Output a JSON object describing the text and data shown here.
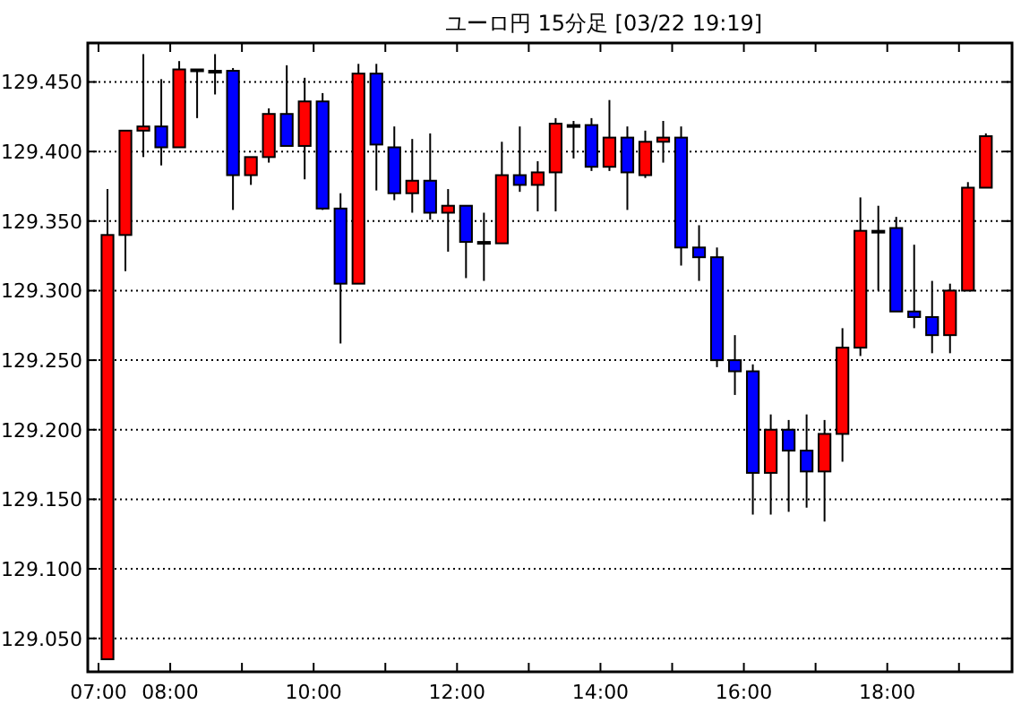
{
  "chart_data": {
    "type": "candlestick",
    "title": "ユーロ円 15分足 [03/22 19:19]",
    "x": [
      7.125,
      7.375,
      7.625,
      7.875,
      8.125,
      8.375,
      8.625,
      8.875,
      9.125,
      9.375,
      9.625,
      9.875,
      10.125,
      10.375,
      10.625,
      10.875,
      11.125,
      11.375,
      11.625,
      11.875,
      12.125,
      12.375,
      12.625,
      12.875,
      13.125,
      13.375,
      13.625,
      13.875,
      14.125,
      14.375,
      14.625,
      14.875,
      15.125,
      15.375,
      15.625,
      15.875,
      16.125,
      16.375,
      16.625,
      16.875,
      17.125,
      17.375,
      17.625,
      17.875,
      18.125,
      18.375,
      18.625,
      18.875,
      19.125,
      19.375
    ],
    "ohlc": [
      [
        129.035,
        129.373,
        129.035,
        129.34
      ],
      [
        129.34,
        129.415,
        129.314,
        129.415
      ],
      [
        129.415,
        129.47,
        129.396,
        129.418
      ],
      [
        129.418,
        129.452,
        129.39,
        129.403
      ],
      [
        129.403,
        129.465,
        129.403,
        129.459
      ],
      [
        129.459,
        129.459,
        129.424,
        129.459
      ],
      [
        129.458,
        129.47,
        129.441,
        129.458
      ],
      [
        129.458,
        129.46,
        129.358,
        129.383
      ],
      [
        129.383,
        129.396,
        129.376,
        129.396
      ],
      [
        129.396,
        129.431,
        129.392,
        129.427
      ],
      [
        129.427,
        129.462,
        129.404,
        129.404
      ],
      [
        129.404,
        129.453,
        129.38,
        129.436
      ],
      [
        129.436,
        129.442,
        129.358,
        129.359
      ],
      [
        129.359,
        129.37,
        129.262,
        129.305
      ],
      [
        129.305,
        129.463,
        129.305,
        129.456
      ],
      [
        129.456,
        129.463,
        129.372,
        129.405
      ],
      [
        129.403,
        129.418,
        129.365,
        129.37
      ],
      [
        129.37,
        129.409,
        129.356,
        129.379
      ],
      [
        129.379,
        129.413,
        129.351,
        129.356
      ],
      [
        129.356,
        129.373,
        129.328,
        129.361
      ],
      [
        129.361,
        129.361,
        129.309,
        129.335
      ],
      [
        129.335,
        129.356,
        129.307,
        129.335
      ],
      [
        129.334,
        129.407,
        129.334,
        129.383
      ],
      [
        129.383,
        129.418,
        129.371,
        129.376
      ],
      [
        129.376,
        129.393,
        129.357,
        129.385
      ],
      [
        129.385,
        129.424,
        129.357,
        129.42
      ],
      [
        129.419,
        129.422,
        129.395,
        129.419
      ],
      [
        129.419,
        129.424,
        129.386,
        129.389
      ],
      [
        129.389,
        129.437,
        129.386,
        129.41
      ],
      [
        129.41,
        129.418,
        129.358,
        129.385
      ],
      [
        129.383,
        129.415,
        129.381,
        129.407
      ],
      [
        129.407,
        129.422,
        129.392,
        129.41
      ],
      [
        129.41,
        129.418,
        129.318,
        129.331
      ],
      [
        129.331,
        129.347,
        129.307,
        129.324
      ],
      [
        129.324,
        129.331,
        129.245,
        129.25
      ],
      [
        129.25,
        129.268,
        129.225,
        129.242
      ],
      [
        129.242,
        129.247,
        129.139,
        129.169
      ],
      [
        129.169,
        129.211,
        129.139,
        129.2
      ],
      [
        129.2,
        129.207,
        129.141,
        129.185
      ],
      [
        129.185,
        129.211,
        129.144,
        129.17
      ],
      [
        129.17,
        129.207,
        129.134,
        129.197
      ],
      [
        129.197,
        129.273,
        129.177,
        129.259
      ],
      [
        129.259,
        129.367,
        129.253,
        129.343
      ],
      [
        129.343,
        129.361,
        129.3,
        129.343
      ],
      [
        129.345,
        129.353,
        129.285,
        129.285
      ],
      [
        129.285,
        129.333,
        129.273,
        129.281
      ],
      [
        129.281,
        129.307,
        129.255,
        129.268
      ],
      [
        129.268,
        129.305,
        129.255,
        129.3
      ],
      [
        129.3,
        129.378,
        129.3,
        129.374
      ],
      [
        129.374,
        129.413,
        129.374,
        129.411
      ]
    ],
    "colors": [
      "#ff0000",
      "#ff0000",
      "#ff0000",
      "#0000ff",
      "#ff0000",
      "#000000",
      "#000000",
      "#0000ff",
      "#ff0000",
      "#ff0000",
      "#0000ff",
      "#ff0000",
      "#0000ff",
      "#0000ff",
      "#ff0000",
      "#0000ff",
      "#0000ff",
      "#ff0000",
      "#0000ff",
      "#ff0000",
      "#0000ff",
      "#000000",
      "#ff0000",
      "#0000ff",
      "#ff0000",
      "#ff0000",
      "#000000",
      "#0000ff",
      "#ff0000",
      "#0000ff",
      "#ff0000",
      "#ff0000",
      "#0000ff",
      "#0000ff",
      "#0000ff",
      "#0000ff",
      "#0000ff",
      "#ff0000",
      "#0000ff",
      "#0000ff",
      "#ff0000",
      "#ff0000",
      "#ff0000",
      "#000000",
      "#0000ff",
      "#0000ff",
      "#0000ff",
      "#ff0000",
      "#ff0000",
      "#ff0000"
    ],
    "xlim": [
      6.85,
      19.74
    ],
    "xticks": [
      {
        "value": 7,
        "label": "07:00"
      },
      {
        "value": 8,
        "label": "08:00"
      },
      {
        "value": 9,
        "label": null
      },
      {
        "value": 10,
        "label": "10:00"
      },
      {
        "value": 11,
        "label": null
      },
      {
        "value": 12,
        "label": "12:00"
      },
      {
        "value": 13,
        "label": null
      },
      {
        "value": 14,
        "label": "14:00"
      },
      {
        "value": 15,
        "label": null
      },
      {
        "value": 16,
        "label": "16:00"
      },
      {
        "value": 17,
        "label": null
      },
      {
        "value": 18,
        "label": "18:00"
      },
      {
        "value": 19,
        "label": null
      }
    ],
    "ylim": [
      129.026,
      129.478
    ],
    "yticks": [
      {
        "value": 129.05,
        "label": "129.050"
      },
      {
        "value": 129.1,
        "label": "129.100"
      },
      {
        "value": 129.15,
        "label": "129.150"
      },
      {
        "value": 129.2,
        "label": "129.200"
      },
      {
        "value": 129.25,
        "label": "129.250"
      },
      {
        "value": 129.3,
        "label": "129.300"
      },
      {
        "value": 129.35,
        "label": "129.350"
      },
      {
        "value": 129.4,
        "label": "129.400"
      },
      {
        "value": 129.45,
        "label": "129.450"
      }
    ],
    "grid": "y"
  }
}
